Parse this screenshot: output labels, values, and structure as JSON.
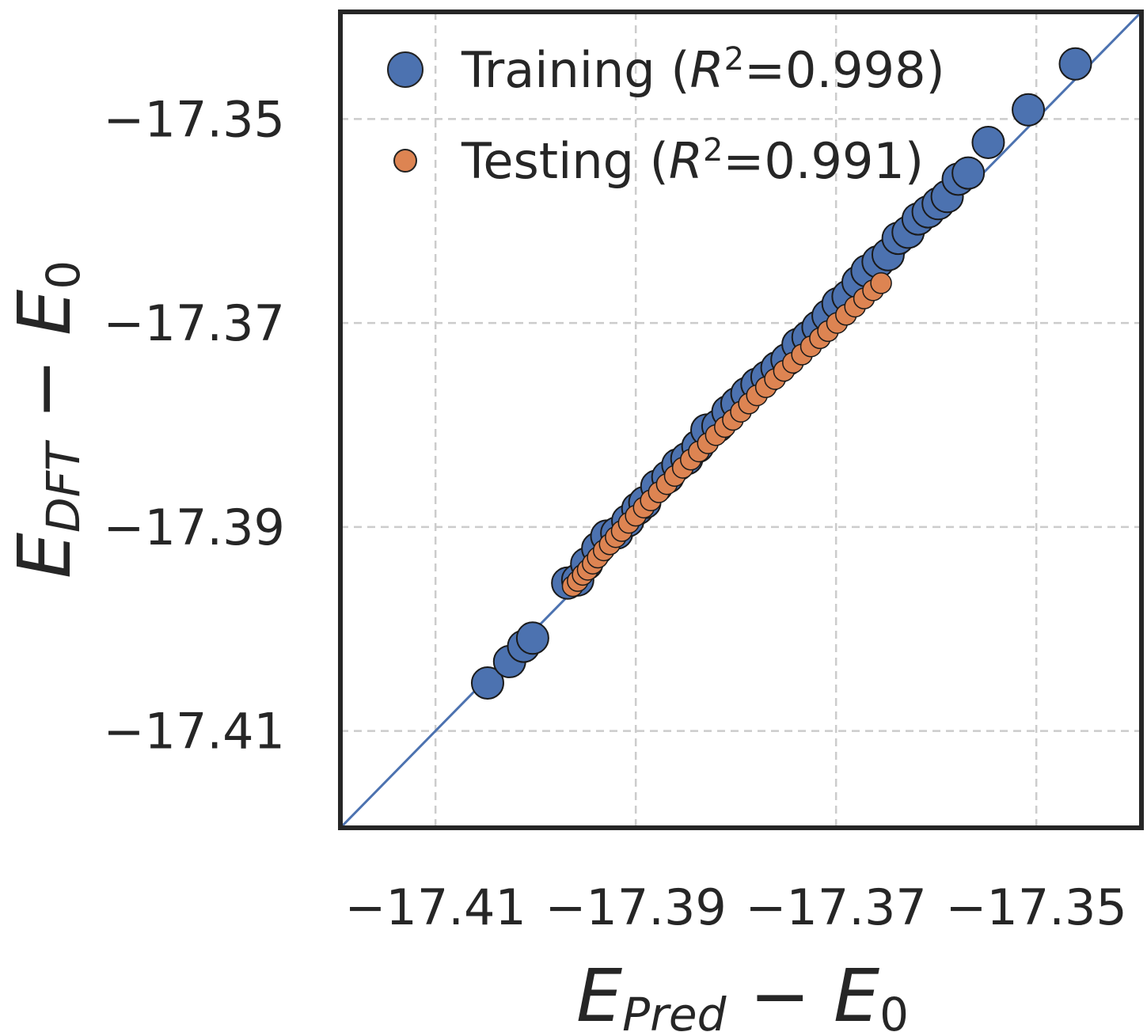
{
  "chart_data": {
    "type": "scatter",
    "xlabel": {
      "main": "E",
      "sub": "Pred",
      "rest": " − ",
      "main2": "E",
      "sub2": "0"
    },
    "ylabel": {
      "main": "E",
      "sub": "DFT",
      "rest": " − ",
      "main2": "E",
      "sub2": "0"
    },
    "xlim": [
      -17.4195,
      -17.3395
    ],
    "ylim": [
      -17.4195,
      -17.3395
    ],
    "xticks": [
      -17.41,
      -17.39,
      -17.37,
      -17.35
    ],
    "yticks": [
      -17.41,
      -17.39,
      -17.37,
      -17.35
    ],
    "xtick_labels": [
      "−17.41",
      "−17.39",
      "−17.37",
      "−17.35"
    ],
    "ytick_labels": [
      "−17.41",
      "−17.39",
      "−17.37",
      "−17.35"
    ],
    "grid": true,
    "diagonal": {
      "from": -17.4195,
      "to": -17.3395,
      "color": "#4c72b0"
    },
    "legend_position": "top-left",
    "series": [
      {
        "name": "Training",
        "legend_prefix": "Training (",
        "legend_r": "R",
        "legend_sup": "2",
        "legend_value": "=0.998)",
        "color": "#4c72b0",
        "x": [
          -17.4048,
          -17.4026,
          -17.4012,
          -17.4003,
          -17.3968,
          -17.3958,
          -17.3949,
          -17.3938,
          -17.3929,
          -17.3919,
          -17.3908,
          -17.3898,
          -17.3891,
          -17.3879,
          -17.3868,
          -17.3858,
          -17.3849,
          -17.3838,
          -17.3829,
          -17.3818,
          -17.3808,
          -17.3799,
          -17.3789,
          -17.3779,
          -17.3769,
          -17.3759,
          -17.3749,
          -17.3738,
          -17.3728,
          -17.3718,
          -17.3708,
          -17.3698,
          -17.3688,
          -17.3678,
          -17.3669,
          -17.3658,
          -17.3648,
          -17.3638,
          -17.3628,
          -17.3618,
          -17.3608,
          -17.3598,
          -17.3589,
          -17.3578,
          -17.3568,
          -17.3548,
          -17.3508,
          -17.3461
        ],
        "y": [
          -17.4053,
          -17.4032,
          -17.4017,
          -17.4009,
          -17.3955,
          -17.3952,
          -17.3936,
          -17.3921,
          -17.3909,
          -17.3906,
          -17.3894,
          -17.3882,
          -17.3876,
          -17.386,
          -17.3851,
          -17.3839,
          -17.3833,
          -17.3821,
          -17.3805,
          -17.3801,
          -17.3787,
          -17.3779,
          -17.3769,
          -17.376,
          -17.3753,
          -17.3744,
          -17.3736,
          -17.3721,
          -17.3714,
          -17.3704,
          -17.3693,
          -17.3681,
          -17.3674,
          -17.366,
          -17.3649,
          -17.364,
          -17.3633,
          -17.3617,
          -17.3611,
          -17.3598,
          -17.3591,
          -17.3583,
          -17.3576,
          -17.3559,
          -17.3553,
          -17.3523,
          -17.3491,
          -17.3446
        ]
      },
      {
        "name": "Testing",
        "legend_prefix": "Testing (",
        "legend_r": "R",
        "legend_sup": "2",
        "legend_value": "=0.991)",
        "color": "#dd8452",
        "x": [
          -17.3963,
          -17.3958,
          -17.3953,
          -17.3948,
          -17.3943,
          -17.3938,
          -17.3932,
          -17.3926,
          -17.392,
          -17.3914,
          -17.3907,
          -17.39,
          -17.3892,
          -17.3885,
          -17.3877,
          -17.3869,
          -17.3861,
          -17.3853,
          -17.3845,
          -17.3837,
          -17.3828,
          -17.382,
          -17.3811,
          -17.3803,
          -17.3795,
          -17.3787,
          -17.3779,
          -17.377,
          -17.3761,
          -17.3752,
          -17.3743,
          -17.3734,
          -17.3725,
          -17.3716,
          -17.3708,
          -17.3699,
          -17.369,
          -17.3681,
          -17.3672,
          -17.3663,
          -17.3655
        ],
        "y": [
          -17.3958,
          -17.3953,
          -17.3947,
          -17.3942,
          -17.3936,
          -17.393,
          -17.3923,
          -17.3917,
          -17.391,
          -17.3904,
          -17.3896,
          -17.3889,
          -17.3881,
          -17.3874,
          -17.3866,
          -17.3858,
          -17.385,
          -17.3842,
          -17.3834,
          -17.3826,
          -17.3818,
          -17.381,
          -17.3802,
          -17.3795,
          -17.3787,
          -17.3779,
          -17.3771,
          -17.3763,
          -17.3755,
          -17.3747,
          -17.3739,
          -17.3731,
          -17.3723,
          -17.3715,
          -17.3708,
          -17.37,
          -17.3692,
          -17.3684,
          -17.3676,
          -17.3668,
          -17.3661
        ]
      }
    ]
  }
}
